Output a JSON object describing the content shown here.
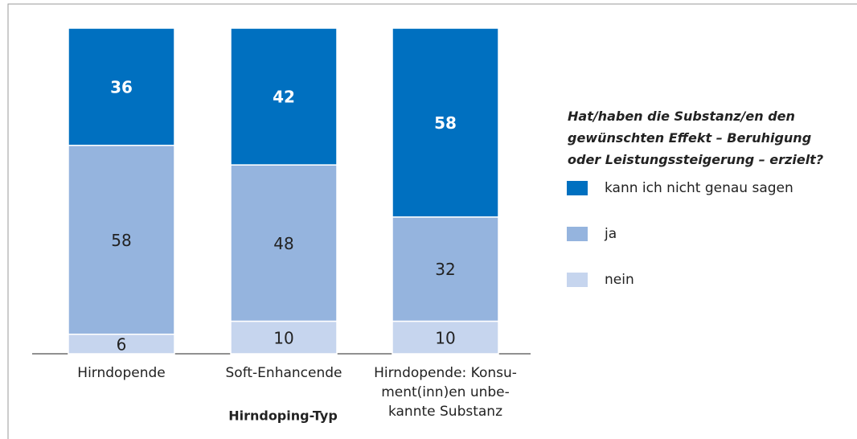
{
  "chart_data": {
    "type": "stacked_bar",
    "x_label": "Hirndoping-Typ",
    "legend_title": "Hat/haben die Substanz/en den\ngewünschten Effekt – Beruhigung\noder Leistungssteigerung – erzielt?",
    "categories": [
      "Hirndopende",
      "Soft-Enhancende",
      "Hirndopende: Konsu-\nment(inn)en unbe-\nkannte Substanz"
    ],
    "series": [
      {
        "name": "nein",
        "color": "#c6d5ee",
        "values": [
          6,
          10,
          10
        ]
      },
      {
        "name": "ja",
        "color": "#95b4de",
        "values": [
          58,
          48,
          32
        ]
      },
      {
        "name": "kann ich nicht genau sagen",
        "color": "#0070c0",
        "values": [
          36,
          42,
          58
        ]
      }
    ],
    "ylim": [
      0,
      100
    ],
    "legend": "right"
  }
}
